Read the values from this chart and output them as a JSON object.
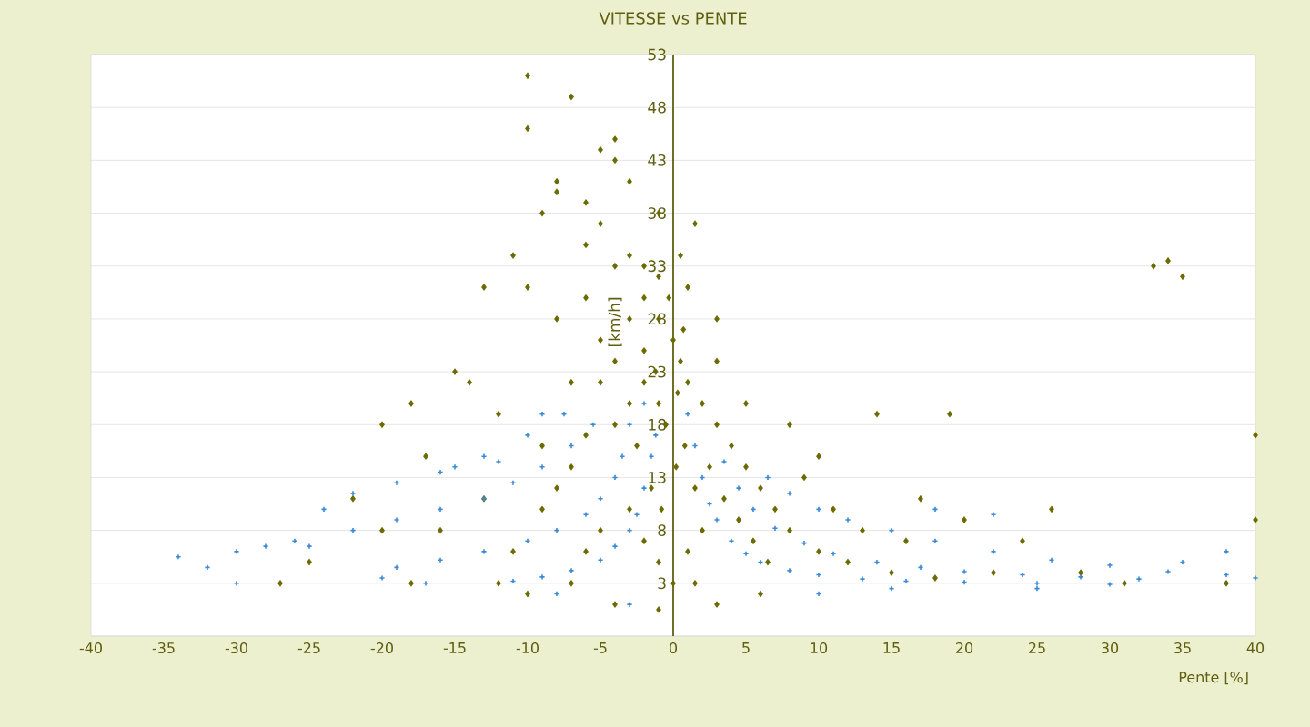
{
  "chart_data": {
    "type": "scatter",
    "title": "VITESSE vs PENTE",
    "xlabel": "Pente [%]",
    "ylabel": "[km/h]",
    "xlim": [
      -40,
      40
    ],
    "xticks": [
      -40,
      -35,
      -30,
      -25,
      -20,
      -15,
      -10,
      -5,
      0,
      5,
      10,
      15,
      20,
      25,
      30,
      35,
      40
    ],
    "ylim": [
      -2,
      53
    ],
    "yticks": [
      {
        "value": -2,
        "label": null
      },
      3,
      8,
      13,
      18,
      23,
      28,
      33,
      38,
      43,
      48,
      53
    ],
    "grid": "y",
    "series": [
      {
        "color": "#6b6b00",
        "marker": "diamond",
        "x": [
          -10,
          -10,
          -7,
          -4,
          -5,
          -4,
          -8,
          -8,
          -3,
          -6,
          -1,
          1.5,
          -9,
          -5,
          -11,
          -6,
          -3,
          0.5,
          -13,
          -10,
          -4,
          -2,
          -1,
          1,
          3,
          -6,
          -8,
          -15,
          -14,
          -18,
          -20,
          33,
          34,
          35,
          40,
          40,
          19,
          14,
          20,
          26,
          -27,
          -18,
          -10,
          38,
          -16,
          -13,
          -9,
          -7,
          -5,
          -3,
          -2,
          -1,
          0,
          0.5,
          1,
          2,
          3,
          4,
          5,
          6,
          7,
          8,
          10,
          12,
          15,
          18,
          22,
          -1,
          -0.5,
          0.3,
          -2,
          -3,
          -4,
          -5,
          -6,
          -7,
          -8,
          -4,
          -2.5,
          -1.5,
          -0.8,
          0.2,
          0.8,
          1.5,
          2.5,
          3.5,
          4.5,
          5.5,
          6.5,
          2,
          1,
          0,
          -1,
          -2,
          -3,
          -5,
          -6,
          -7,
          -9,
          -11,
          -12,
          9,
          11,
          13,
          16,
          17,
          24,
          28,
          31,
          5,
          3,
          8,
          -0.3,
          -1.2,
          0.7,
          -2,
          10,
          6,
          3,
          -4,
          -1,
          1.5,
          -20,
          -22,
          -17,
          -25,
          -12
        ],
        "values": [
          51,
          46,
          49,
          45,
          44,
          43,
          41,
          40,
          41,
          39,
          38,
          37,
          38,
          37,
          34,
          35,
          34,
          34,
          31,
          31,
          33,
          33,
          32,
          31,
          28,
          30,
          28,
          23,
          22,
          20,
          18,
          33,
          33.5,
          32,
          17,
          9,
          19,
          19,
          9,
          10,
          3,
          3,
          2,
          3,
          8,
          11,
          16,
          22,
          26,
          28,
          25,
          28,
          26,
          24,
          22,
          20,
          18,
          16,
          14,
          12,
          10,
          8,
          6,
          5,
          4,
          3.5,
          4,
          20,
          18,
          21,
          22,
          20,
          18,
          22,
          17,
          14,
          12,
          24,
          16,
          12,
          10,
          14,
          16,
          12,
          14,
          11,
          9,
          7,
          5,
          8,
          6,
          3,
          5,
          7,
          10,
          8,
          6,
          3,
          10,
          6,
          3,
          13,
          10,
          8,
          7,
          11,
          7,
          4,
          3,
          20,
          24,
          18,
          30,
          23,
          27,
          30,
          15,
          2,
          1,
          1,
          0.5,
          3,
          8,
          11,
          15,
          5,
          19
        ]
      },
      {
        "color": "#3b8ad8",
        "marker": "cross",
        "x": [
          1.5,
          2,
          2.5,
          3,
          4,
          5,
          6,
          8,
          10,
          13,
          16,
          20,
          25,
          30,
          3.5,
          4.5,
          5.5,
          7,
          9,
          11,
          14,
          17,
          20,
          24,
          28,
          32,
          6.5,
          8,
          10,
          12,
          15,
          18,
          22,
          26,
          30,
          34,
          38,
          -1.2,
          -1.5,
          -2,
          -2.5,
          -3,
          -4,
          -5,
          -7,
          -9,
          -11,
          -3,
          -3.5,
          -4,
          -5,
          -6,
          -8,
          -10,
          -13,
          -16,
          -19,
          -5.5,
          -7,
          -9,
          -11,
          -13,
          -16,
          -19,
          -22,
          -26,
          -7.5,
          -10,
          -13,
          -16,
          -19,
          -22,
          -34,
          -32,
          -30,
          -28,
          -25,
          -20,
          -17,
          -30,
          -24,
          -15,
          -12,
          -9,
          -2,
          1,
          18,
          22,
          35,
          38,
          40,
          15,
          25,
          10,
          -3,
          -8
        ],
        "values": [
          16,
          13,
          10.5,
          9,
          7,
          5.8,
          5,
          4.2,
          3.8,
          3.4,
          3.2,
          3.1,
          3,
          2.9,
          14.5,
          12,
          10,
          8.2,
          6.8,
          5.8,
          5,
          4.5,
          4.1,
          3.8,
          3.6,
          3.4,
          13,
          11.5,
          10,
          9,
          8,
          7,
          6,
          5.2,
          4.7,
          4.1,
          3.8,
          17,
          15,
          12,
          9.5,
          8,
          6.5,
          5.2,
          4.2,
          3.6,
          3.2,
          18,
          15,
          13,
          11,
          9.5,
          8,
          7,
          6,
          5.2,
          4.5,
          18,
          16,
          14,
          12.5,
          11,
          10,
          9,
          8,
          7,
          19,
          17,
          15,
          13.5,
          12.5,
          11.5,
          5.5,
          4.5,
          6,
          6.5,
          6.5,
          3.5,
          3,
          3,
          10,
          14,
          14.5,
          19,
          20,
          19,
          10,
          9.5,
          5,
          6,
          3.5,
          2.5,
          2.5,
          2,
          1,
          2
        ]
      }
    ]
  }
}
